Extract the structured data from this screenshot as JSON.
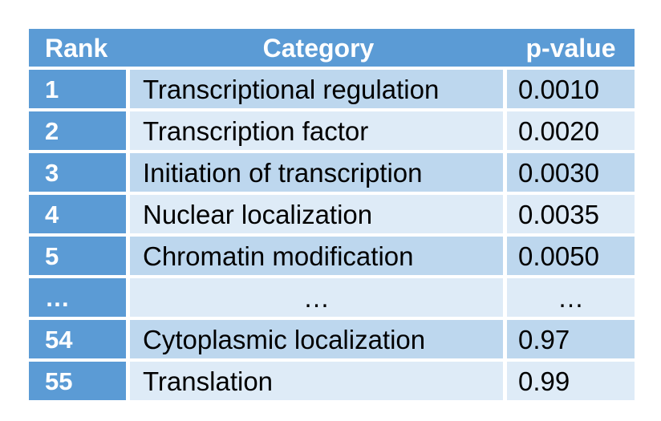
{
  "table": {
    "headers": {
      "rank": "Rank",
      "category": "Category",
      "pvalue": "p-value"
    },
    "rows": [
      {
        "rank": "1",
        "category": "Transcriptional regulation",
        "pvalue": "0.0010"
      },
      {
        "rank": "2",
        "category": "Transcription factor",
        "pvalue": "0.0020"
      },
      {
        "rank": "3",
        "category": "Initiation of transcription",
        "pvalue": "0.0030"
      },
      {
        "rank": "4",
        "category": "Nuclear localization",
        "pvalue": "0.0035"
      },
      {
        "rank": "5",
        "category": "Chromatin modification",
        "pvalue": "0.0050"
      },
      {
        "rank": "…",
        "category": "…",
        "pvalue": "…"
      },
      {
        "rank": "54",
        "category": "Cytoplasmic localization",
        "pvalue": "0.97"
      },
      {
        "rank": "55",
        "category": "Translation",
        "pvalue": "0.99"
      }
    ],
    "colors": {
      "header_blue": "#5b9bd5",
      "rank_column_blue": "#5b9bd5",
      "row_medium": "#bdd7ee",
      "row_light": "#deebf7",
      "grid_gap": "#ffffff",
      "header_text": "#ffffff",
      "body_text": "#000000"
    }
  },
  "chart_data": {
    "type": "table",
    "title": "",
    "columns": [
      "Rank",
      "Category",
      "p-value"
    ],
    "rows": [
      [
        "1",
        "Transcriptional regulation",
        "0.0010"
      ],
      [
        "2",
        "Transcription factor",
        "0.0020"
      ],
      [
        "3",
        "Initiation of transcription",
        "0.0030"
      ],
      [
        "4",
        "Nuclear localization",
        "0.0035"
      ],
      [
        "5",
        "Chromatin modification",
        "0.0050"
      ],
      [
        "…",
        "…",
        "…"
      ],
      [
        "54",
        "Cytoplasmic localization",
        "0.97"
      ],
      [
        "55",
        "Translation",
        "0.99"
      ]
    ],
    "layout_hints": {
      "header_fill": "#5b9bd5",
      "rank_column_fill": "#5b9bd5",
      "banded_rows": [
        "#bdd7ee",
        "#deebf7"
      ],
      "ellipsis_row_index": 5
    }
  }
}
